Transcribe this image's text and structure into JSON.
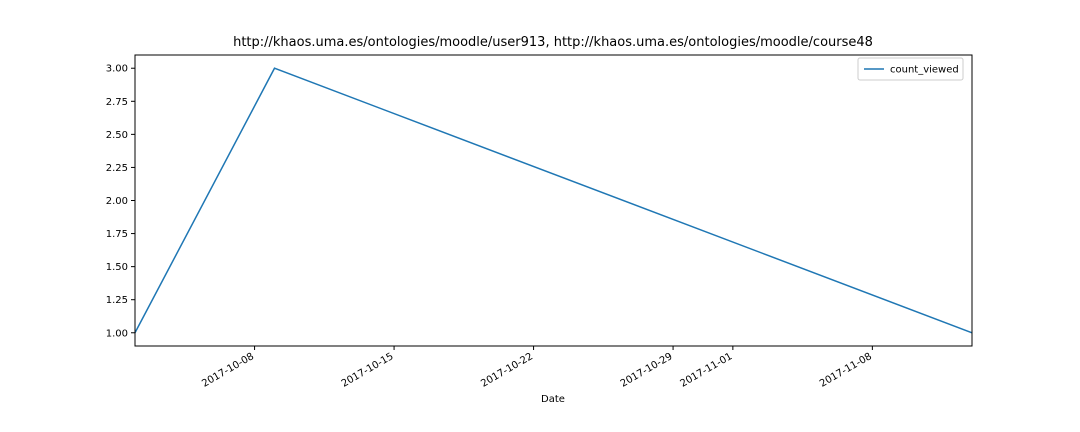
{
  "chart_data": {
    "type": "line",
    "title": "http://khaos.uma.es/ontologies/moodle/user913, http://khaos.uma.es/ontologies/moodle/course48",
    "xlabel": "Date",
    "ylabel": "",
    "x_ticks": [
      "2017-10-08",
      "2017-10-15",
      "2017-10-22",
      "2017-10-29",
      "2017-11-01",
      "2017-11-08"
    ],
    "y_ticks": [
      "1.00",
      "1.25",
      "1.50",
      "1.75",
      "2.00",
      "2.25",
      "2.50",
      "2.75",
      "3.00"
    ],
    "xlim": [
      "2017-10-02",
      "2017-11-13"
    ],
    "ylim": [
      0.9,
      3.1
    ],
    "series": [
      {
        "name": "count_viewed",
        "color": "#1f77b4",
        "x": [
          "2017-10-02",
          "2017-10-09",
          "2017-11-13"
        ],
        "y": [
          1.0,
          3.0,
          1.0
        ]
      }
    ],
    "legend": {
      "position": "top-right"
    },
    "grid": false
  }
}
